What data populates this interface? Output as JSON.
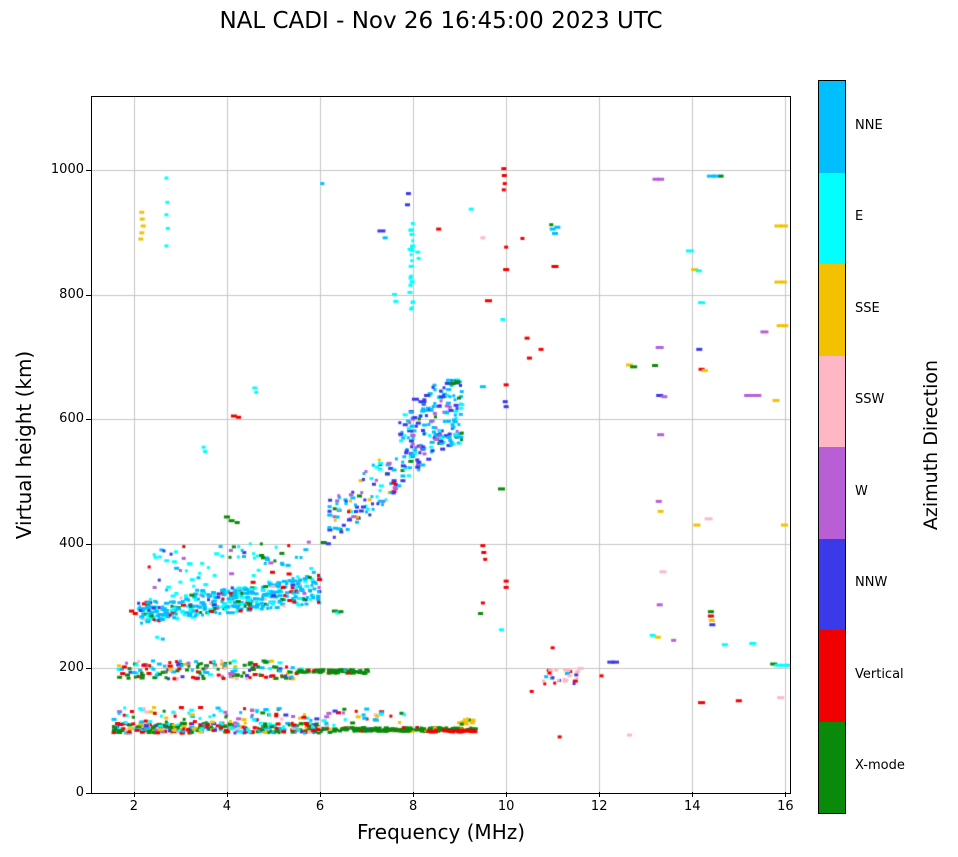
{
  "page": {
    "title": "NAL CADI - Nov 26 16:45:00 2023 UTC"
  },
  "chart_data": {
    "type": "scatter",
    "title": "NAL CADI - Nov 26 16:45:00 2023 UTC",
    "xlabel": "Frequency (MHz)",
    "ylabel": "Virtual height (km)",
    "xlim": [
      1.1,
      16.1
    ],
    "ylim": [
      0,
      1117
    ],
    "xticks": [
      2,
      4,
      6,
      8,
      10,
      12,
      14,
      16
    ],
    "yticks": [
      0,
      200,
      400,
      600,
      800,
      1000
    ],
    "grid": true,
    "grid_color": "#c6c6c6",
    "marker": {
      "w": 4,
      "h": 3
    },
    "colorbar": {
      "label": "Azimuth Direction",
      "categories": [
        {
          "name": "NNE",
          "color": "#00BFFF"
        },
        {
          "name": "E",
          "color": "#00FFFF"
        },
        {
          "name": "SSE",
          "color": "#F2C200"
        },
        {
          "name": "SSW",
          "color": "#FFB7C5"
        },
        {
          "name": "W",
          "color": "#B85FD6"
        },
        {
          "name": "NNW",
          "color": "#3A3AE8"
        },
        {
          "name": "Vertical",
          "color": "#F00000"
        },
        {
          "name": "X-mode",
          "color": "#0A8A0A"
        }
      ]
    },
    "bands": [
      {
        "name": "e-region-base",
        "f": [
          1.55,
          6.3
        ],
        "h0": [
          96,
          112
        ],
        "n": 340,
        "palette": [
          [
            7,
            34
          ],
          [
            6,
            16
          ],
          [
            1,
            12
          ],
          [
            0,
            12
          ],
          [
            2,
            10
          ],
          [
            5,
            8
          ],
          [
            4,
            4
          ],
          [
            3,
            4
          ]
        ]
      },
      {
        "name": "e-region-green-line",
        "f": [
          6.3,
          9.35
        ],
        "h0": [
          99,
          105
        ],
        "n": 200,
        "palette": [
          [
            7,
            80
          ],
          [
            6,
            8
          ],
          [
            2,
            6
          ],
          [
            5,
            4
          ],
          [
            1,
            2
          ]
        ]
      },
      {
        "name": "e-region-red-line",
        "f": [
          8.3,
          9.35
        ],
        "h0": [
          98,
          101
        ],
        "n": 40,
        "palette": [
          [
            6,
            1
          ]
        ]
      },
      {
        "name": "e-region-gold-patch",
        "f": [
          8.95,
          9.3
        ],
        "h0": [
          110,
          121
        ],
        "n": 16,
        "palette": [
          [
            2,
            9
          ],
          [
            7,
            1
          ]
        ]
      },
      {
        "name": "e-region-speckle",
        "f": [
          1.55,
          7.9
        ],
        "h0": [
          112,
          138
        ],
        "n": 110,
        "palette": [
          [
            1,
            18
          ],
          [
            0,
            18
          ],
          [
            6,
            16
          ],
          [
            7,
            14
          ],
          [
            2,
            12
          ],
          [
            5,
            8
          ],
          [
            3,
            7
          ],
          [
            4,
            7
          ]
        ]
      },
      {
        "name": "f1-band",
        "f": [
          1.55,
          5.6
        ],
        "h0": [
          183,
          212
        ],
        "n": 170,
        "palette": [
          [
            7,
            28
          ],
          [
            6,
            20
          ],
          [
            0,
            14
          ],
          [
            1,
            10
          ],
          [
            2,
            10
          ],
          [
            5,
            6
          ],
          [
            3,
            6
          ],
          [
            4,
            6
          ]
        ]
      },
      {
        "name": "f1-green-line",
        "f": [
          5.5,
          7.05
        ],
        "h0": [
          192,
          198
        ],
        "n": 70,
        "palette": [
          [
            7,
            88
          ],
          [
            6,
            6
          ],
          [
            0,
            6
          ]
        ]
      },
      {
        "name": "f-trace",
        "f": [
          2.1,
          6.0
        ],
        "h0": [
          272,
          305
        ],
        "h1": [
          305,
          352
        ],
        "n": 420,
        "palette": [
          [
            0,
            62
          ],
          [
            1,
            18
          ],
          [
            6,
            6
          ],
          [
            7,
            5
          ],
          [
            5,
            4
          ],
          [
            4,
            3
          ],
          [
            3,
            2
          ]
        ]
      },
      {
        "name": "f-upper-scatter",
        "f": [
          2.3,
          6.0
        ],
        "h0": [
          310,
          395
        ],
        "h1": [
          345,
          408
        ],
        "n": 80,
        "palette": [
          [
            1,
            36
          ],
          [
            0,
            30
          ],
          [
            6,
            12
          ],
          [
            4,
            8
          ],
          [
            7,
            8
          ],
          [
            5,
            6
          ]
        ]
      },
      {
        "name": "oblique-trace-1",
        "f": [
          6.2,
          7.65
        ],
        "h0": [
          398,
          470
        ],
        "h1": [
          478,
          565
        ],
        "n": 95,
        "palette": [
          [
            5,
            26
          ],
          [
            0,
            24
          ],
          [
            1,
            16
          ],
          [
            4,
            16
          ],
          [
            6,
            6
          ],
          [
            7,
            6
          ],
          [
            2,
            6
          ]
        ]
      },
      {
        "name": "oblique-trace-2",
        "f": [
          7.7,
          8.35
        ],
        "h0": [
          490,
          600
        ],
        "h1": [
          525,
          640
        ],
        "n": 90,
        "palette": [
          [
            5,
            34
          ],
          [
            0,
            30
          ],
          [
            1,
            16
          ],
          [
            4,
            12
          ],
          [
            7,
            8
          ]
        ]
      },
      {
        "name": "oblique-trace-3",
        "f": [
          8.35,
          9.05
        ],
        "h0": [
          545,
          655
        ],
        "h1": [
          560,
          668
        ],
        "n": 120,
        "palette": [
          [
            0,
            44
          ],
          [
            5,
            24
          ],
          [
            1,
            16
          ],
          [
            7,
            8
          ],
          [
            4,
            8
          ]
        ]
      },
      {
        "name": "spread-f-streak",
        "f": [
          7.93,
          8.0
        ],
        "h0": [
          775,
          940
        ],
        "n": 24,
        "palette": [
          [
            1,
            1
          ]
        ]
      },
      {
        "name": "sporadic-cluster-11mhz",
        "f": [
          10.8,
          11.55
        ],
        "h0": [
          175,
          198
        ],
        "n": 26,
        "palette": [
          [
            6,
            55
          ],
          [
            3,
            25
          ],
          [
            5,
            10
          ],
          [
            0,
            10
          ]
        ]
      }
    ],
    "points": [
      [
        2.17,
        932,
        2
      ],
      [
        2.18,
        921,
        2
      ],
      [
        2.2,
        910,
        2
      ],
      [
        2.17,
        899,
        2
      ],
      [
        2.15,
        889,
        2
      ],
      [
        2.7,
        987,
        1,
        4
      ],
      [
        2.72,
        948,
        1,
        4
      ],
      [
        2.7,
        928,
        1,
        4
      ],
      [
        2.73,
        906,
        1,
        4
      ],
      [
        2.7,
        878,
        1,
        4
      ],
      [
        6.05,
        978,
        0,
        4
      ],
      [
        7.32,
        902,
        5,
        8
      ],
      [
        7.4,
        891,
        0,
        5
      ],
      [
        7.6,
        800,
        1,
        5
      ],
      [
        7.63,
        789,
        1,
        5
      ],
      [
        7.9,
        962,
        5,
        5
      ],
      [
        7.88,
        944,
        5,
        5
      ],
      [
        8.1,
        868,
        1,
        5
      ],
      [
        8.12,
        858,
        1,
        4
      ],
      [
        8.55,
        905,
        6,
        5
      ],
      [
        9.25,
        937,
        1,
        5
      ],
      [
        9.5,
        891,
        3,
        5
      ],
      [
        9.62,
        790,
        6,
        7
      ],
      [
        9.95,
        1002,
        6,
        5
      ],
      [
        9.96,
        991,
        6,
        5
      ],
      [
        9.97,
        978,
        6,
        4
      ],
      [
        9.95,
        968,
        6,
        4
      ],
      [
        10.0,
        876,
        6,
        4
      ],
      [
        10.0,
        840,
        6,
        6
      ],
      [
        9.93,
        760,
        1,
        5
      ],
      [
        10.35,
        890,
        6,
        4
      ],
      [
        10.45,
        730,
        6,
        5
      ],
      [
        10.5,
        698,
        6,
        5
      ],
      [
        10.75,
        712,
        6,
        5
      ],
      [
        10.0,
        655,
        6,
        5
      ],
      [
        9.98,
        628,
        5,
        5
      ],
      [
        10.0,
        620,
        5,
        5
      ],
      [
        9.9,
        488,
        7,
        7
      ],
      [
        11.0,
        905,
        0,
        6
      ],
      [
        11.05,
        898,
        0,
        6
      ],
      [
        11.1,
        908,
        0,
        6
      ],
      [
        10.97,
        912,
        7,
        4
      ],
      [
        11.05,
        845,
        6,
        7
      ],
      [
        11.0,
        233,
        6,
        4
      ],
      [
        10.55,
        163,
        6,
        4
      ],
      [
        11.6,
        200,
        3,
        6
      ],
      [
        11.15,
        90,
        6,
        4
      ],
      [
        12.25,
        210,
        5,
        7
      ],
      [
        12.35,
        210,
        5,
        7
      ],
      [
        12.65,
        93,
        3,
        5
      ],
      [
        12.65,
        687,
        2,
        7
      ],
      [
        12.74,
        684,
        7,
        7
      ],
      [
        13.22,
        985,
        4,
        7
      ],
      [
        13.32,
        985,
        4,
        7
      ],
      [
        13.3,
        715,
        4,
        8
      ],
      [
        13.2,
        686,
        7,
        6
      ],
      [
        13.3,
        638,
        5,
        7
      ],
      [
        13.4,
        636,
        4,
        6
      ],
      [
        13.32,
        575,
        4,
        7
      ],
      [
        13.28,
        468,
        4,
        6
      ],
      [
        13.32,
        452,
        2,
        6
      ],
      [
        13.37,
        355,
        3,
        7
      ],
      [
        13.3,
        302,
        4,
        6
      ],
      [
        13.15,
        253,
        1,
        6
      ],
      [
        13.26,
        250,
        2,
        6
      ],
      [
        13.6,
        245,
        4,
        5
      ],
      [
        13.95,
        870,
        1,
        8
      ],
      [
        14.05,
        840,
        2,
        7
      ],
      [
        14.14,
        838,
        1,
        6
      ],
      [
        14.2,
        787,
        1,
        7
      ],
      [
        14.15,
        712,
        5,
        6
      ],
      [
        14.2,
        680,
        6,
        6
      ],
      [
        14.27,
        678,
        2,
        6
      ],
      [
        14.1,
        430,
        2,
        7
      ],
      [
        14.35,
        440,
        3,
        8
      ],
      [
        14.2,
        145,
        6,
        7
      ],
      [
        14.4,
        291,
        7,
        6
      ],
      [
        14.4,
        284,
        6,
        6
      ],
      [
        14.42,
        277,
        2,
        6
      ],
      [
        14.43,
        270,
        5,
        6
      ],
      [
        14.4,
        990,
        0,
        8
      ],
      [
        14.52,
        990,
        0,
        8
      ],
      [
        14.62,
        990,
        7,
        5
      ],
      [
        14.7,
        238,
        1,
        6
      ],
      [
        15.0,
        148,
        6,
        6
      ],
      [
        15.2,
        638,
        4,
        8
      ],
      [
        15.32,
        638,
        4,
        8
      ],
      [
        15.42,
        638,
        4,
        6
      ],
      [
        15.55,
        740,
        4,
        8
      ],
      [
        15.3,
        240,
        1,
        7
      ],
      [
        15.75,
        207,
        7,
        7
      ],
      [
        15.85,
        205,
        1,
        8
      ],
      [
        15.97,
        205,
        1,
        8
      ],
      [
        16.05,
        205,
        1,
        6
      ],
      [
        15.9,
        153,
        3,
        7
      ],
      [
        15.85,
        910,
        2,
        8
      ],
      [
        15.97,
        910,
        2,
        8
      ],
      [
        15.85,
        820,
        2,
        8
      ],
      [
        15.97,
        820,
        2,
        6
      ],
      [
        15.9,
        750,
        2,
        8
      ],
      [
        16.0,
        750,
        2,
        6
      ],
      [
        15.8,
        630,
        2,
        7
      ],
      [
        15.98,
        430,
        2,
        7
      ],
      [
        6.32,
        292,
        7,
        6
      ],
      [
        6.38,
        289,
        1,
        5
      ],
      [
        6.45,
        291,
        7,
        5
      ],
      [
        6.08,
        402,
        7,
        6
      ],
      [
        6.18,
        400,
        5,
        5
      ],
      [
        4.6,
        650,
        1,
        5
      ],
      [
        4.63,
        643,
        1,
        4
      ],
      [
        4.15,
        605,
        6,
        6
      ],
      [
        4.25,
        603,
        6,
        5
      ],
      [
        3.5,
        555,
        1,
        4
      ],
      [
        3.53,
        548,
        1,
        4
      ],
      [
        1.95,
        292,
        6,
        5
      ],
      [
        2.03,
        288,
        6,
        5
      ],
      [
        2.5,
        250,
        1,
        4
      ],
      [
        2.62,
        247,
        0,
        4
      ],
      [
        4.0,
        443,
        7,
        6
      ],
      [
        4.1,
        437,
        7,
        6
      ],
      [
        4.22,
        434,
        7,
        5
      ],
      [
        8.05,
        632,
        5,
        7
      ],
      [
        8.2,
        628,
        5,
        8
      ],
      [
        8.3,
        638,
        5,
        6
      ],
      [
        8.85,
        657,
        7,
        6
      ],
      [
        8.95,
        660,
        7,
        6
      ],
      [
        9.5,
        652,
        0,
        6
      ],
      [
        10.0,
        340,
        6,
        5
      ],
      [
        10.0,
        330,
        6,
        5
      ],
      [
        9.9,
        262,
        1,
        5
      ],
      [
        9.5,
        397,
        6,
        5
      ],
      [
        9.52,
        386,
        6,
        5
      ],
      [
        9.55,
        375,
        6,
        4
      ],
      [
        9.5,
        305,
        6,
        4
      ],
      [
        9.45,
        288,
        7,
        5
      ],
      [
        12.05,
        188,
        6,
        4
      ]
    ]
  }
}
